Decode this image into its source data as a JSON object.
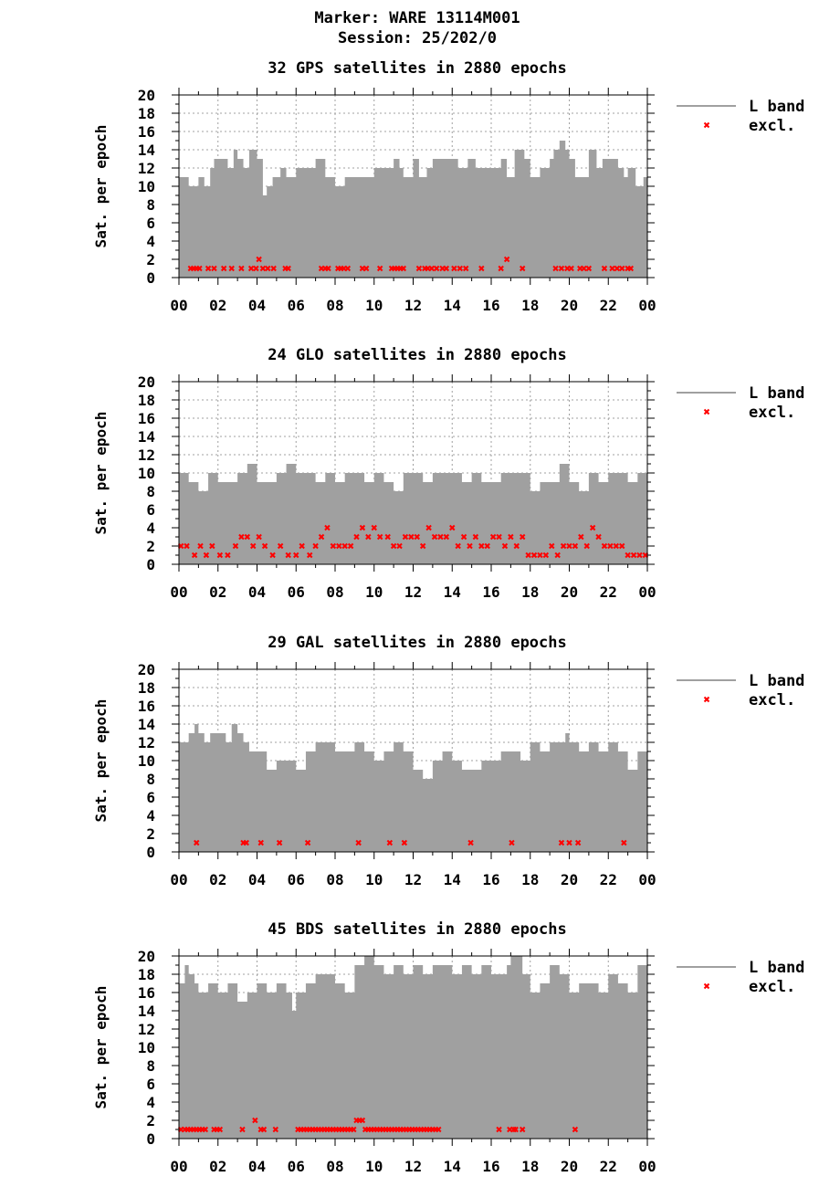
{
  "header": {
    "marker": "Marker: WARE 13114M001",
    "session": "Session: 25/202/0"
  },
  "style": {
    "band_color": "#a0a0a0",
    "excl_color": "#ff0000",
    "grid_color": "#a0a0a0"
  },
  "chart_data": [
    {
      "type": "area",
      "title": "32 GPS satellites in 2880 epochs",
      "ylabel": "Sat. per epoch",
      "xlabel": "",
      "ylim": [
        0,
        20
      ],
      "yticks": [
        "0",
        "2",
        "4",
        "6",
        "8",
        "10",
        "12",
        "14",
        "16",
        "18",
        "20"
      ],
      "xticks": [
        "00",
        "02",
        "04",
        "06",
        "08",
        "10",
        "12",
        "14",
        "16",
        "18",
        "20",
        "22",
        "00"
      ],
      "grid": true,
      "legend": {
        "position": "right",
        "band": "L band",
        "excl": "excl."
      },
      "series": [
        {
          "name": "L band",
          "x_hours": [
            0.0,
            0.5,
            1.0,
            1.3,
            1.6,
            1.8,
            2.0,
            2.5,
            2.8,
            3.0,
            3.3,
            3.6,
            4.0,
            4.3,
            4.5,
            4.8,
            5.2,
            5.5,
            6.0,
            6.5,
            7.0,
            7.5,
            8.0,
            8.5,
            9.0,
            9.5,
            10.0,
            10.5,
            11.0,
            11.3,
            11.5,
            12.0,
            12.3,
            12.7,
            13.0,
            13.5,
            14.0,
            14.3,
            14.8,
            15.2,
            15.5,
            16.0,
            16.5,
            16.8,
            17.2,
            17.7,
            18.0,
            18.5,
            19.0,
            19.2,
            19.5,
            19.8,
            20.0,
            20.3,
            20.7,
            21.0,
            21.4,
            21.7,
            22.0,
            22.5,
            22.8,
            23.0,
            23.4,
            23.8,
            24.0
          ],
          "values": [
            11,
            10,
            11,
            10,
            12,
            13,
            13,
            12,
            14,
            13,
            12,
            14,
            13,
            9,
            10,
            11,
            12,
            11,
            12,
            12,
            13,
            11,
            10,
            11,
            11,
            11,
            12,
            12,
            13,
            12,
            11,
            13,
            11,
            12,
            13,
            13,
            13,
            12,
            13,
            12,
            12,
            12,
            13,
            11,
            14,
            13,
            11,
            12,
            13,
            14,
            15,
            14,
            13,
            11,
            11,
            14,
            12,
            13,
            13,
            12,
            11,
            12,
            10,
            11,
            11
          ]
        },
        {
          "name": "excl.",
          "x_hours": [
            0.6,
            0.75,
            0.9,
            1.05,
            1.5,
            1.8,
            2.3,
            2.7,
            3.2,
            3.7,
            3.95,
            4.1,
            4.3,
            4.55,
            4.85,
            5.45,
            5.6,
            7.3,
            7.5,
            7.65,
            8.15,
            8.3,
            8.45,
            8.65,
            9.4,
            9.6,
            10.3,
            10.9,
            11.05,
            11.2,
            11.35,
            11.5,
            12.3,
            12.6,
            12.75,
            12.95,
            13.2,
            13.5,
            13.7,
            14.1,
            14.4,
            14.7,
            15.5,
            16.5,
            16.8,
            17.6,
            19.3,
            19.6,
            19.9,
            20.1,
            20.55,
            20.75,
            21.0,
            21.8,
            22.2,
            22.45,
            22.7,
            23.0,
            23.15
          ],
          "values": [
            1,
            1,
            1,
            1,
            1,
            1,
            1,
            1,
            1,
            1,
            1,
            2,
            1,
            1,
            1,
            1,
            1,
            1,
            1,
            1,
            1,
            1,
            1,
            1,
            1,
            1,
            1,
            1,
            1,
            1,
            1,
            1,
            1,
            1,
            1,
            1,
            1,
            1,
            1,
            1,
            1,
            1,
            1,
            1,
            2,
            1,
            1,
            1,
            1,
            1,
            1,
            1,
            1,
            1,
            1,
            1,
            1,
            1,
            1
          ]
        }
      ]
    },
    {
      "type": "area",
      "title": "24 GLO satellites in 2880 epochs",
      "ylabel": "Sat. per epoch",
      "xlabel": "",
      "ylim": [
        0,
        20
      ],
      "yticks": [
        "0",
        "2",
        "4",
        "6",
        "8",
        "10",
        "12",
        "14",
        "16",
        "18",
        "20"
      ],
      "xticks": [
        "00",
        "02",
        "04",
        "06",
        "08",
        "10",
        "12",
        "14",
        "16",
        "18",
        "20",
        "22",
        "00"
      ],
      "grid": true,
      "legend": {
        "position": "right",
        "band": "L band",
        "excl": "excl."
      },
      "series": [
        {
          "name": "L band",
          "x_hours": [
            0.0,
            0.5,
            1.0,
            1.5,
            2.0,
            2.5,
            3.0,
            3.5,
            4.0,
            4.5,
            5.0,
            5.5,
            6.0,
            6.5,
            7.0,
            7.5,
            8.0,
            8.5,
            9.0,
            9.5,
            10.0,
            10.5,
            11.0,
            11.5,
            12.0,
            12.5,
            13.0,
            13.5,
            14.0,
            14.5,
            15.0,
            15.5,
            16.0,
            16.5,
            17.0,
            17.5,
            18.0,
            18.5,
            19.0,
            19.5,
            20.0,
            20.5,
            21.0,
            21.5,
            22.0,
            22.5,
            23.0,
            23.5,
            24.0
          ],
          "values": [
            10,
            9,
            8,
            10,
            9,
            9,
            10,
            11,
            9,
            9,
            10,
            11,
            10,
            10,
            9,
            10,
            9,
            10,
            10,
            9,
            10,
            9,
            8,
            10,
            10,
            9,
            10,
            10,
            10,
            9,
            10,
            9,
            9,
            10,
            10,
            10,
            8,
            9,
            9,
            11,
            9,
            8,
            10,
            9,
            10,
            10,
            9,
            10,
            10
          ]
        },
        {
          "name": "excl.",
          "x_hours": [
            0.1,
            0.4,
            0.8,
            1.1,
            1.4,
            1.7,
            2.1,
            2.5,
            2.9,
            3.2,
            3.5,
            3.8,
            4.1,
            4.4,
            4.8,
            5.2,
            5.6,
            6.0,
            6.3,
            6.7,
            7.0,
            7.3,
            7.6,
            7.9,
            8.2,
            8.5,
            8.8,
            9.1,
            9.4,
            9.7,
            10.0,
            10.3,
            10.7,
            11.0,
            11.3,
            11.6,
            11.9,
            12.2,
            12.5,
            12.8,
            13.1,
            13.4,
            13.7,
            14.0,
            14.3,
            14.6,
            14.9,
            15.2,
            15.5,
            15.8,
            16.1,
            16.4,
            16.7,
            17.0,
            17.3,
            17.6,
            17.9,
            18.2,
            18.5,
            18.8,
            19.1,
            19.4,
            19.7,
            20.0,
            20.3,
            20.6,
            20.9,
            21.2,
            21.5,
            21.8,
            22.1,
            22.4,
            22.7,
            23.0,
            23.3,
            23.6,
            23.9
          ],
          "values": [
            2,
            2,
            1,
            2,
            1,
            2,
            1,
            1,
            2,
            3,
            3,
            2,
            3,
            2,
            1,
            2,
            1,
            1,
            2,
            1,
            2,
            3,
            4,
            2,
            2,
            2,
            2,
            3,
            4,
            3,
            4,
            3,
            3,
            2,
            2,
            3,
            3,
            3,
            2,
            4,
            3,
            3,
            3,
            4,
            2,
            3,
            2,
            3,
            2,
            2,
            3,
            3,
            2,
            3,
            2,
            3,
            1,
            1,
            1,
            1,
            2,
            1,
            2,
            2,
            2,
            3,
            2,
            4,
            3,
            2,
            2,
            2,
            2,
            1,
            1,
            1,
            1
          ]
        }
      ]
    },
    {
      "type": "area",
      "title": "29 GAL satellites in 2880 epochs",
      "ylabel": "Sat. per epoch",
      "xlabel": "",
      "ylim": [
        0,
        20
      ],
      "yticks": [
        "0",
        "2",
        "4",
        "6",
        "8",
        "10",
        "12",
        "14",
        "16",
        "18",
        "20"
      ],
      "xticks": [
        "00",
        "02",
        "04",
        "06",
        "08",
        "10",
        "12",
        "14",
        "16",
        "18",
        "20",
        "22",
        "00"
      ],
      "grid": true,
      "legend": {
        "position": "right",
        "band": "L band",
        "excl": "excl."
      },
      "series": [
        {
          "name": "L band",
          "x_hours": [
            0.0,
            0.5,
            0.8,
            1.0,
            1.3,
            1.6,
            2.0,
            2.4,
            2.7,
            3.0,
            3.3,
            3.6,
            4.0,
            4.5,
            5.0,
            5.5,
            6.0,
            6.5,
            7.0,
            7.5,
            8.0,
            8.5,
            9.0,
            9.5,
            10.0,
            10.5,
            11.0,
            11.5,
            12.0,
            12.5,
            13.0,
            13.5,
            14.0,
            14.5,
            15.0,
            15.5,
            16.0,
            16.5,
            17.0,
            17.5,
            18.0,
            18.5,
            19.0,
            19.5,
            19.8,
            20.0,
            20.5,
            21.0,
            21.5,
            22.0,
            22.5,
            23.0,
            23.5,
            24.0
          ],
          "values": [
            12,
            13,
            14,
            13,
            12,
            13,
            13,
            12,
            14,
            13,
            12,
            11,
            11,
            9,
            10,
            10,
            9,
            11,
            12,
            12,
            11,
            11,
            12,
            11,
            10,
            11,
            12,
            11,
            9,
            8,
            10,
            11,
            10,
            9,
            9,
            10,
            10,
            11,
            11,
            10,
            12,
            11,
            12,
            12,
            13,
            12,
            11,
            12,
            11,
            12,
            11,
            9,
            11,
            13
          ]
        },
        {
          "name": "excl.",
          "x_hours": [
            0.9,
            3.3,
            3.45,
            4.2,
            5.15,
            6.6,
            9.2,
            10.8,
            11.55,
            14.95,
            17.05,
            19.6,
            20.0,
            20.45,
            22.8
          ],
          "values": [
            1,
            1,
            1,
            1,
            1,
            1,
            1,
            1,
            1,
            1,
            1,
            1,
            1,
            1,
            1
          ]
        }
      ]
    },
    {
      "type": "area",
      "title": "45 BDS satellites in 2880 epochs",
      "ylabel": "Sat. per epoch",
      "xlabel": "",
      "ylim": [
        0,
        20
      ],
      "yticks": [
        "0",
        "2",
        "4",
        "6",
        "8",
        "10",
        "12",
        "14",
        "16",
        "18",
        "20"
      ],
      "xticks": [
        "00",
        "02",
        "04",
        "06",
        "08",
        "10",
        "12",
        "14",
        "16",
        "18",
        "20",
        "22",
        "00"
      ],
      "grid": true,
      "legend": {
        "position": "right",
        "band": "L band",
        "excl": "excl."
      },
      "series": [
        {
          "name": "L band",
          "x_hours": [
            0.0,
            0.3,
            0.5,
            0.8,
            1.0,
            1.5,
            2.0,
            2.5,
            3.0,
            3.5,
            4.0,
            4.5,
            5.0,
            5.5,
            5.8,
            6.0,
            6.5,
            7.0,
            7.5,
            8.0,
            8.5,
            9.0,
            9.5,
            10.0,
            10.5,
            11.0,
            11.5,
            12.0,
            12.5,
            13.0,
            13.5,
            14.0,
            14.5,
            15.0,
            15.5,
            16.0,
            16.5,
            16.8,
            17.0,
            17.3,
            17.6,
            18.0,
            18.5,
            19.0,
            19.5,
            20.0,
            20.5,
            21.0,
            21.5,
            22.0,
            22.5,
            23.0,
            23.5,
            24.0
          ],
          "values": [
            17,
            19,
            18,
            17,
            16,
            17,
            16,
            17,
            15,
            16,
            17,
            16,
            17,
            16,
            14,
            16,
            17,
            18,
            18,
            17,
            16,
            19,
            20,
            19,
            18,
            19,
            18,
            19,
            18,
            19,
            19,
            18,
            19,
            18,
            19,
            18,
            18,
            19,
            20,
            20,
            18,
            16,
            17,
            19,
            18,
            16,
            17,
            17,
            16,
            18,
            17,
            16,
            19,
            19
          ]
        },
        {
          "name": "excl.",
          "x_hours": [
            0.1,
            0.3,
            0.45,
            0.6,
            0.75,
            0.9,
            1.05,
            1.2,
            1.35,
            1.8,
            1.95,
            2.1,
            3.25,
            3.9,
            4.2,
            4.35,
            4.95,
            6.1,
            6.25,
            6.4,
            6.55,
            6.7,
            6.85,
            7.0,
            7.15,
            7.3,
            7.45,
            7.6,
            7.75,
            7.9,
            8.05,
            8.2,
            8.35,
            8.5,
            8.65,
            8.8,
            8.95,
            9.1,
            9.25,
            9.4,
            9.55,
            9.7,
            9.85,
            10.0,
            10.15,
            10.3,
            10.45,
            10.6,
            10.75,
            10.9,
            11.05,
            11.2,
            11.35,
            11.5,
            11.65,
            11.8,
            11.95,
            12.1,
            12.25,
            12.4,
            12.55,
            12.7,
            12.85,
            13.0,
            13.15,
            13.3,
            16.4,
            16.95,
            17.15,
            17.25,
            17.6,
            20.3
          ],
          "values": [
            1,
            1,
            1,
            1,
            1,
            1,
            1,
            1,
            1,
            1,
            1,
            1,
            1,
            2,
            1,
            1,
            1,
            1,
            1,
            1,
            1,
            1,
            1,
            1,
            1,
            1,
            1,
            1,
            1,
            1,
            1,
            1,
            1,
            1,
            1,
            1,
            1,
            2,
            2,
            2,
            1,
            1,
            1,
            1,
            1,
            1,
            1,
            1,
            1,
            1,
            1,
            1,
            1,
            1,
            1,
            1,
            1,
            1,
            1,
            1,
            1,
            1,
            1,
            1,
            1,
            1,
            1,
            1,
            1,
            1,
            1,
            1
          ]
        }
      ]
    }
  ]
}
